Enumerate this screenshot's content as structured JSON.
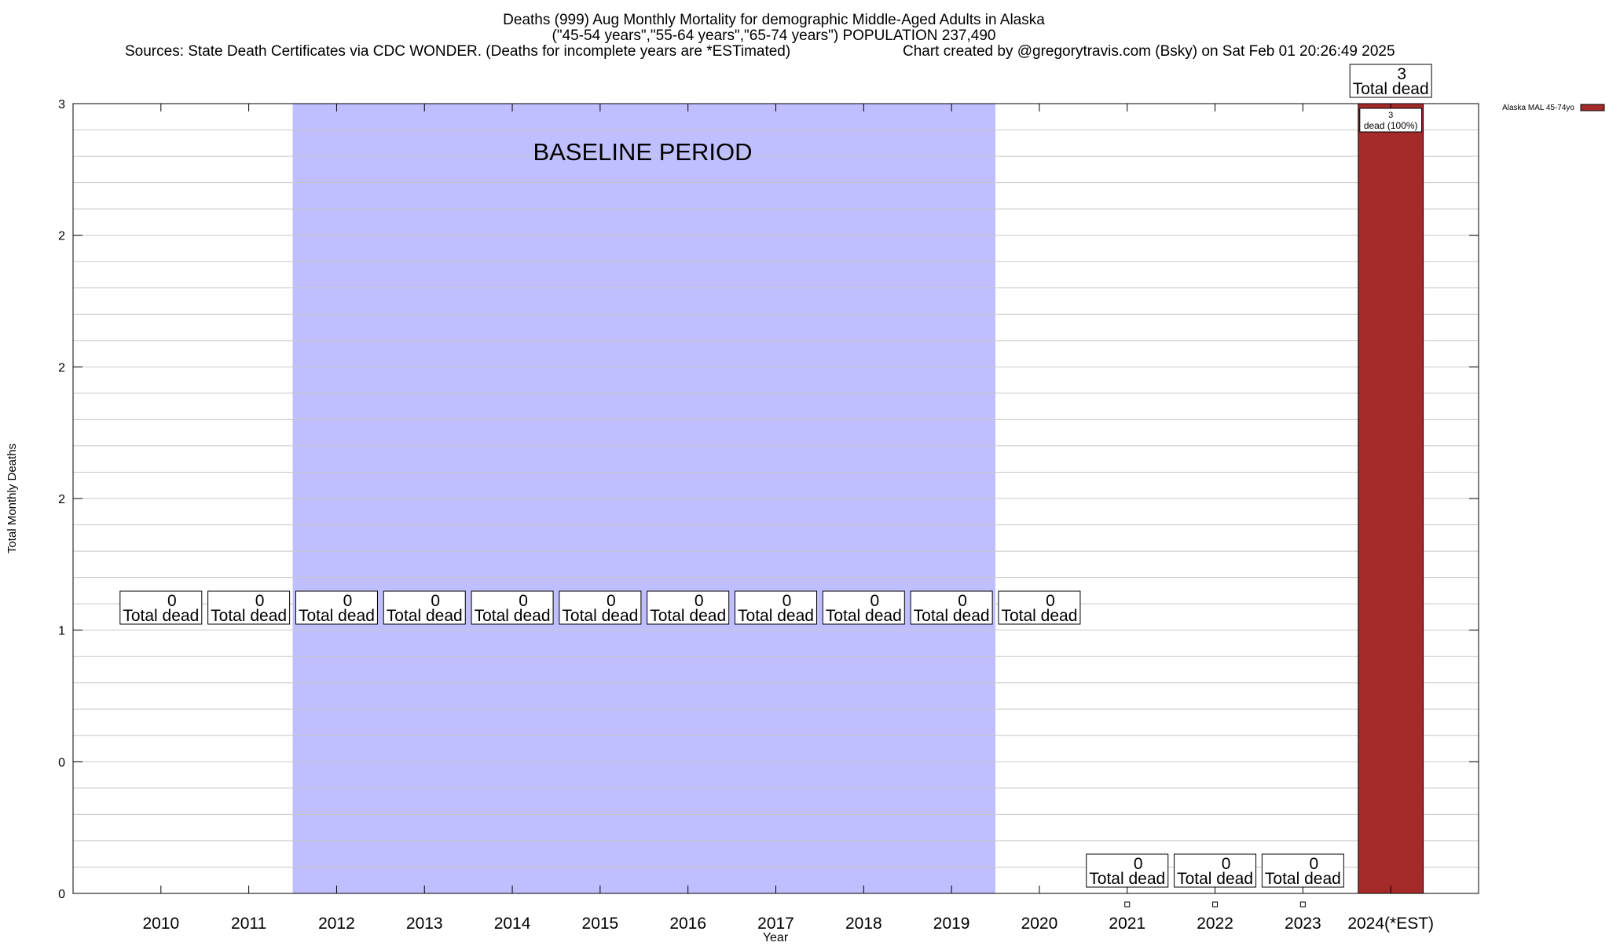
{
  "chart_data": {
    "type": "bar",
    "title_lines": [
      "Deaths (999) Aug Monthly Mortality for demographic Middle-Aged Adults in Alaska",
      "(\"45-54 years\",\"55-64 years\",\"65-74 years\") POPULATION 237,490"
    ],
    "sources": "Sources: State Death Certificates via CDC WONDER. (Deaths for incomplete years are *ESTimated)",
    "credit": "Chart created by @gregorytravis.com (Bsky) on Sat Feb 01 20:26:49 2025",
    "xlabel": "Year",
    "ylabel": "Total Monthly Deaths",
    "ylim": [
      0,
      3
    ],
    "y_tick_labels": [
      "0",
      "0",
      "1",
      "2",
      "2",
      "2",
      "3"
    ],
    "categories": [
      "2010",
      "2011",
      "2012",
      "2013",
      "2014",
      "2015",
      "2016",
      "2017",
      "2018",
      "2019",
      "2020",
      "2021",
      "2022",
      "2023",
      "2024(*EST)"
    ],
    "series": [
      {
        "name": "Alaska MAL 45-74yo",
        "color": "#a52a2a",
        "values": [
          null,
          null,
          null,
          null,
          null,
          null,
          null,
          null,
          null,
          null,
          null,
          0,
          0,
          0,
          3
        ]
      }
    ],
    "total_labels": [
      "0",
      "0",
      "0",
      "0",
      "0",
      "0",
      "0",
      "0",
      "0",
      "0",
      "0",
      "0",
      "0",
      "0",
      "3"
    ],
    "total_label_suffix": "Total dead",
    "segment_label": {
      "category": "2024(*EST)",
      "line1": "3",
      "line2": "dead (100%)"
    },
    "baseline": {
      "label": "BASELINE PERIOD",
      "from": "2012",
      "to": "2019",
      "color": "#bfbfff"
    },
    "grid": true,
    "legend_position": "top-right"
  }
}
